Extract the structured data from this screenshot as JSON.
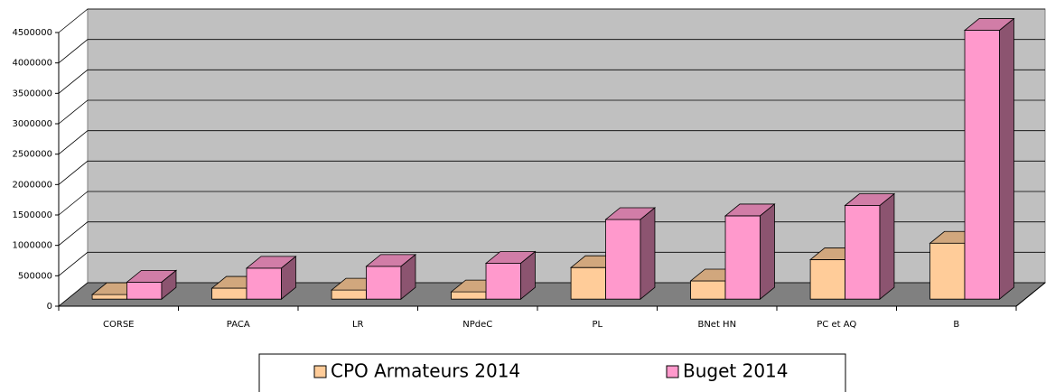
{
  "chart_data": {
    "type": "bar3d",
    "categories": [
      "CORSE",
      "PACA",
      "LR",
      "NPdeC",
      "PL",
      "BNet HN",
      "PC et AQ",
      "B"
    ],
    "series": [
      {
        "name": "CPO Armateurs 2014",
        "color": "#ffcc99",
        "values": [
          75000,
          180000,
          150000,
          120000,
          520000,
          300000,
          650000,
          920000
        ]
      },
      {
        "name": "Buget 2014",
        "color": "#ff99cc",
        "values": [
          280000,
          510000,
          540000,
          590000,
          1310000,
          1370000,
          1540000,
          4420000
        ]
      }
    ],
    "ylim": [
      0,
      4500000
    ],
    "yticks": [
      0,
      500000,
      1000000,
      1500000,
      2000000,
      2500000,
      3000000,
      3500000,
      4000000,
      4500000
    ],
    "grid": true,
    "legend": "bottom"
  }
}
